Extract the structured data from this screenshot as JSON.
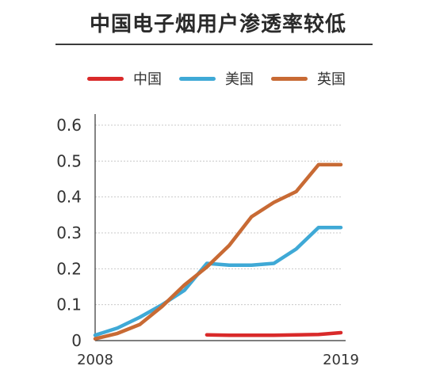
{
  "chart_data": {
    "type": "line",
    "title": "中国电子烟用户渗透率较低",
    "x_ticks": [
      "2008",
      "2019"
    ],
    "x": [
      2008,
      2009,
      2010,
      2011,
      2012,
      2013,
      2014,
      2015,
      2016,
      2017,
      2018,
      2019
    ],
    "y_ticks": [
      "0",
      "0.1",
      "0.2",
      "0.3",
      "0.4",
      "0.5",
      "0.6"
    ],
    "ylim": [
      0,
      0.6
    ],
    "xlim": [
      2008,
      2019
    ],
    "grid": true,
    "legend_position": "top",
    "series": [
      {
        "name": "中国",
        "color": "#d92a2a",
        "x": [
          2013,
          2014,
          2015,
          2016,
          2017,
          2018,
          2019
        ],
        "values": [
          0.016,
          0.015,
          0.015,
          0.015,
          0.016,
          0.017,
          0.022
        ]
      },
      {
        "name": "美国",
        "color": "#3fa9d6",
        "x": [
          2008,
          2009,
          2010,
          2011,
          2012,
          2013,
          2014,
          2015,
          2016,
          2017,
          2018,
          2019
        ],
        "values": [
          0.015,
          0.035,
          0.065,
          0.1,
          0.14,
          0.215,
          0.21,
          0.21,
          0.215,
          0.255,
          0.315,
          0.315
        ]
      },
      {
        "name": "英国",
        "color": "#c86a34",
        "x": [
          2008,
          2009,
          2010,
          2011,
          2012,
          2013,
          2014,
          2015,
          2016,
          2017,
          2018,
          2019
        ],
        "values": [
          0.005,
          0.02,
          0.045,
          0.095,
          0.155,
          0.205,
          0.265,
          0.345,
          0.385,
          0.415,
          0.49,
          0.49
        ]
      }
    ]
  }
}
